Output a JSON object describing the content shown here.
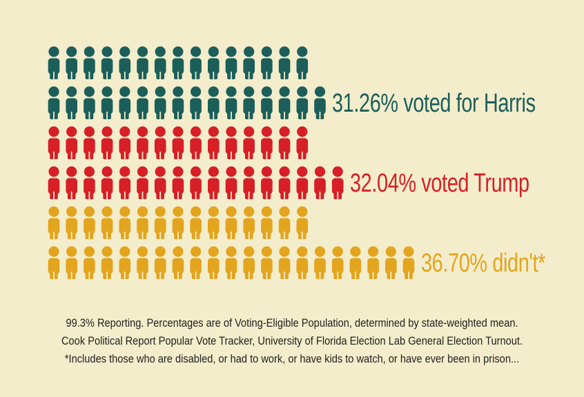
{
  "chart_data": {
    "type": "pictograph",
    "series": [
      {
        "name": "Harris",
        "value": 31.26,
        "label": "31.26% voted for Harris",
        "color": "#1b5e5a",
        "rows": [
          15,
          16
        ]
      },
      {
        "name": "Trump",
        "value": 32.04,
        "label": "32.04% voted Trump",
        "color": "#d61f26",
        "rows": [
          15,
          17
        ]
      },
      {
        "name": "Didn't vote",
        "value": 36.7,
        "label": "36.70% didn't*",
        "color": "#e3a41e",
        "rows": [
          15,
          21
        ]
      }
    ],
    "unit": "percent of voting-eligible population"
  },
  "notes": [
    "99.3% Reporting. Percentages are of Voting-Eligible Population, determined by state-weighted mean.",
    "Cook Political Report Popular Vote Tracker, University of Florida Election Lab General Election Turnout.",
    "*Includes those who are disabled, or had to work, or have kids to watch, or have ever been in prison..."
  ]
}
